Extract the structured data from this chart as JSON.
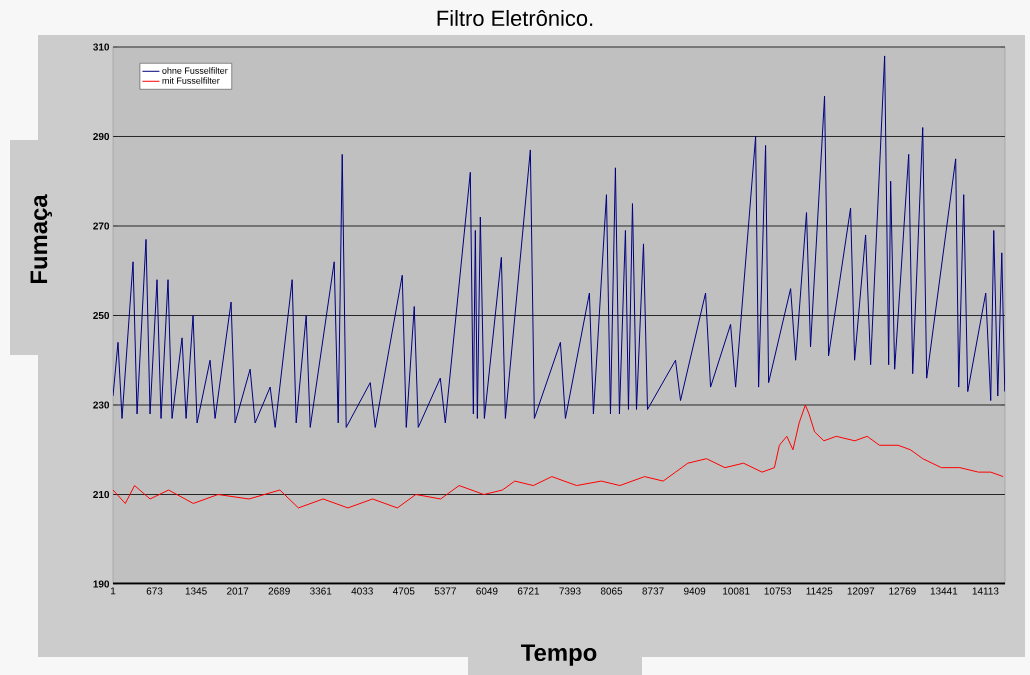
{
  "chart_data": {
    "type": "line",
    "title": "Filtro Eletrônico.",
    "xlabel": "Tempo",
    "ylabel": "Fumaça",
    "xlim": [
      1,
      14430
    ],
    "xticks": [
      1,
      673,
      1345,
      2017,
      2689,
      3361,
      4033,
      4705,
      5377,
      6049,
      6721,
      7393,
      8065,
      8737,
      9409,
      10081,
      10753,
      11425,
      12097,
      12769,
      13441,
      14113
    ],
    "ylim": [
      190,
      310
    ],
    "yticks": [
      190,
      210,
      230,
      250,
      270,
      290,
      310
    ],
    "grid": "y",
    "legend": "top left",
    "marker": "none",
    "series": [
      {
        "name": "ohne Fusselfilter",
        "color": "#000080",
        "x": [
          1,
          82,
          147,
          325,
          390,
          535,
          600,
          713,
          778,
          891,
          956,
          1118,
          1183,
          1296,
          1361,
          1571,
          1652,
          1911,
          1976,
          2219,
          2300,
          2543,
          2624,
          2899,
          2964,
          3126,
          3191,
          3579,
          3644,
          3709,
          3773,
          4162,
          4243,
          4680,
          4745,
          4874,
          4939,
          5295,
          5376,
          5781,
          5830,
          5862,
          5895,
          5943,
          6008,
          6283,
          6348,
          6752,
          6817,
          7238,
          7319,
          7707,
          7772,
          7983,
          8048,
          8128,
          8193,
          8290,
          8339,
          8404,
          8469,
          8582,
          8647,
          9100,
          9181,
          9586,
          9667,
          9991,
          10072,
          10396,
          10444,
          10557,
          10606,
          10962,
          11043,
          11219,
          11284,
          11511,
          11576,
          11932,
          11997,
          12175,
          12256,
          12483,
          12548,
          12580,
          12645,
          12872,
          12937,
          13099,
          13163,
          13632,
          13681,
          13762,
          13827,
          14118,
          14199,
          14248,
          14313,
          14378,
          14426
        ],
        "values": [
          232,
          244,
          227,
          262,
          228,
          267,
          228,
          258,
          227,
          258,
          227,
          245,
          227,
          250,
          226,
          240,
          227,
          253,
          226,
          238,
          226,
          234,
          225,
          258,
          226,
          250,
          225,
          262,
          226,
          286,
          225,
          235,
          225,
          259,
          225,
          252,
          225,
          236,
          226,
          282,
          228,
          269,
          227,
          272,
          227,
          263,
          227,
          287,
          227,
          244,
          227,
          255,
          228,
          277,
          228,
          283,
          228,
          269,
          229,
          275,
          229,
          266,
          229,
          240,
          231,
          255,
          234,
          248,
          234,
          290,
          234,
          288,
          235,
          256,
          240,
          273,
          243,
          299,
          241,
          274,
          240,
          268,
          239,
          308,
          239,
          280,
          238,
          286,
          237,
          292,
          236,
          285,
          234,
          277,
          233,
          255,
          231,
          269,
          232,
          264,
          233
        ]
      },
      {
        "name": "mit Fusselfilter",
        "color": "#ff0000",
        "x": [
          1,
          200,
          350,
          600,
          900,
          1300,
          1700,
          2200,
          2700,
          3000,
          3400,
          3800,
          4200,
          4600,
          4900,
          5300,
          5600,
          6000,
          6300,
          6500,
          6800,
          7100,
          7500,
          7900,
          8200,
          8600,
          8900,
          9100,
          9300,
          9600,
          9900,
          10200,
          10500,
          10700,
          10780,
          10900,
          11000,
          11100,
          11200,
          11260,
          11350,
          11500,
          11700,
          12000,
          12200,
          12400,
          12700,
          12900,
          13100,
          13400,
          13700,
          14000,
          14200,
          14400
        ],
        "values": [
          211,
          208,
          212,
          209,
          211,
          208,
          210,
          209,
          211,
          207,
          209,
          207,
          209,
          207,
          210,
          209,
          212,
          210,
          211,
          213,
          212,
          214,
          212,
          213,
          212,
          214,
          213,
          215,
          217,
          218,
          216,
          217,
          215,
          216,
          221,
          223,
          220,
          226,
          230,
          228,
          224,
          222,
          223,
          222,
          223,
          221,
          221,
          220,
          218,
          216,
          216,
          215,
          215,
          214
        ]
      }
    ]
  }
}
